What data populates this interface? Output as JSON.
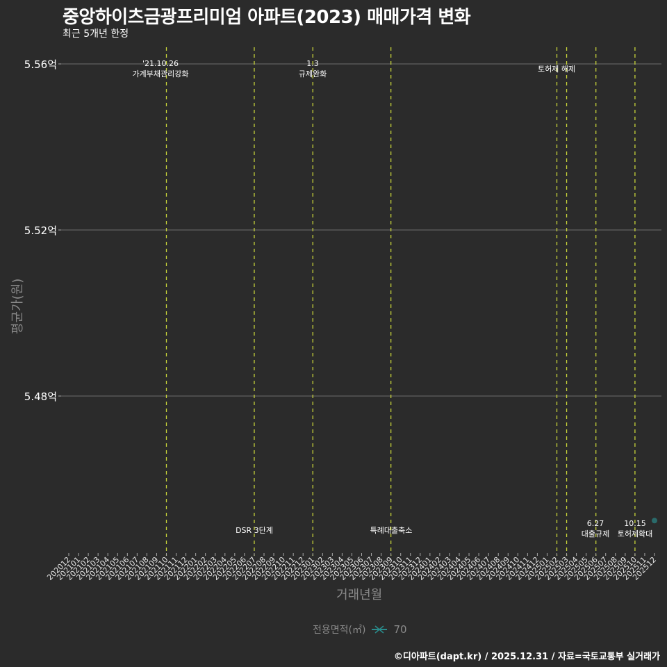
{
  "header": {
    "title": "중앙하이츠금광프리미엄 아파트(2023) 매매가격 변화",
    "subtitle": "최근 5개년 한정"
  },
  "axes": {
    "y_title": "평균가(원)",
    "x_title": "거래년월",
    "y_ticks": [
      "5.56억",
      "5.52억",
      "5.48억"
    ]
  },
  "legend": {
    "title": "전용면적(㎡)",
    "item_label": "70",
    "item_color": "#2a7f7f"
  },
  "caption": "©디아파트(dapt.kr) / 2025.12.31 / 자료=국토교통부 실거래가",
  "colors": {
    "background": "#2b2b2b",
    "gridline": "#6e6e6e",
    "event_line": "#c8d43a",
    "point": "#2a6b6b"
  },
  "annotations": {
    "a1": {
      "line1": "'21.10.26",
      "line2": "가계부채관리강화"
    },
    "a2": {
      "line1": "DSR 3단계"
    },
    "a3": {
      "line1": "1.3",
      "line2": "규제완화"
    },
    "a4": {
      "line1": "특례대출축소"
    },
    "a5": {
      "line1": "토허제 해제"
    },
    "a6": {
      "line1": "6.27",
      "line2": "대출규제"
    },
    "a7": {
      "line1": "10.15",
      "line2": "토허제확대"
    }
  },
  "chart_data": {
    "type": "scatter",
    "title": "중앙하이츠금광프리미엄 아파트(2023) 매매가격 변화",
    "subtitle": "최근 5개년 한정",
    "xlabel": "거래년월",
    "ylabel": "평균가(원)",
    "x_ticks": [
      "202012",
      "202101",
      "202102",
      "202103",
      "202104",
      "202105",
      "202106",
      "202107",
      "202108",
      "202109",
      "202110",
      "202111",
      "202112",
      "202201",
      "202202",
      "202203",
      "202204",
      "202205",
      "202206",
      "202207",
      "202208",
      "202209",
      "202210",
      "202211",
      "202212",
      "202301",
      "202302",
      "202303",
      "202304",
      "202305",
      "202306",
      "202307",
      "202308",
      "202309",
      "202310",
      "202311",
      "202312",
      "202401",
      "202402",
      "202403",
      "202404",
      "202405",
      "202406",
      "202407",
      "202408",
      "202409",
      "202410",
      "202411",
      "202412",
      "202501",
      "202502",
      "202503",
      "202504",
      "202505",
      "202506",
      "202507",
      "202508",
      "202509",
      "202510",
      "202511",
      "202512"
    ],
    "y_tick_labels": [
      "5.48억",
      "5.52억",
      "5.56억"
    ],
    "y_tick_values": [
      5.48,
      5.52,
      5.56
    ],
    "ylim": [
      5.45,
      5.563
    ],
    "series": [
      {
        "name": "70",
        "points": [
          {
            "x": "202512",
            "y": 5.45
          }
        ]
      }
    ],
    "event_lines": [
      {
        "x": "202110",
        "label": "'21.10.26 가계부채관리강화"
      },
      {
        "x": "202207",
        "label": "DSR 3단계"
      },
      {
        "x": "202301",
        "label": "1.3 규제완화"
      },
      {
        "x": "202309",
        "label": "특례대출축소"
      },
      {
        "x": "202502",
        "label": "토허제 해제"
      },
      {
        "x": "202503",
        "label": "토허제 해제"
      },
      {
        "x": "202506",
        "label": "6.27 대출규제"
      },
      {
        "x": "202510",
        "label": "10.15 토허제확대"
      }
    ],
    "legend": {
      "title": "전용면적(㎡)",
      "entries": [
        "70"
      ],
      "position": "bottom"
    },
    "grid": true
  }
}
